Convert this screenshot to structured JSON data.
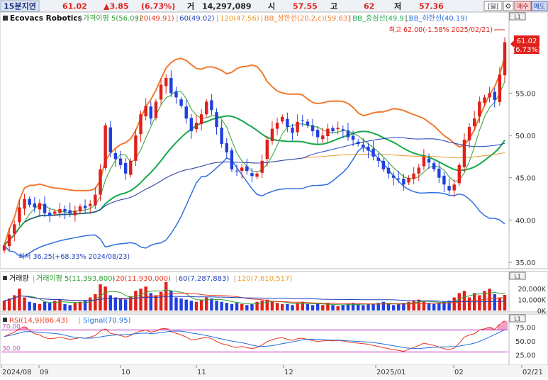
{
  "header": {
    "timeframe_label": "15분지연",
    "price": "61.02",
    "change": "▲3.85",
    "change_pct": "(6.73%)",
    "volume_label": "거",
    "volume_value": "14,297,089",
    "open_label": "시",
    "open_value": "57.55",
    "high_label": "고",
    "high_value": "62",
    "low_label": "저",
    "low_value": "57.36",
    "period_button": "[일]",
    "settings_icon": "gear-icon",
    "buy_button": "매수",
    "sell_button": "매도"
  },
  "legend": {
    "name": "Ecovacs Robotics",
    "items": [
      {
        "label": "가격이평 5(56.09)",
        "color": "#2e9e2e"
      },
      {
        "label": "20(49.91)",
        "color": "#e8381c"
      },
      {
        "label": "60(49.02)",
        "color": "#1f3fbf"
      },
      {
        "label": "120(47.56)",
        "color": "#e69a2e"
      },
      {
        "label": "BB_상한선(20,2,c)(59.63)",
        "color": "#f07a30"
      },
      {
        "label": "BB_중심선(49.91)",
        "color": "#17a84a"
      },
      {
        "label": "BB_하한선(40.19)",
        "color": "#2f6fe0"
      }
    ]
  },
  "annotations": {
    "high": "최고 62.00(-1.58% 2025/02/21)",
    "low": "최저 36.25(+68.33% 2024/08/23)",
    "last_price": "61.02",
    "last_pct": "(6.73%)"
  },
  "price_axis": {
    "min": 34.5,
    "max": 63.5,
    "ticks": [
      "55.00",
      "50.00",
      "45.00",
      "40.00",
      "35.00"
    ]
  },
  "volume_legend": {
    "title": "거래량",
    "items": [
      {
        "label": "거래이평 5(11,393,800)",
        "color": "#2e9e2e"
      },
      {
        "label": "20(11,930,000)",
        "color": "#e8381c"
      },
      {
        "label": "60(7,287,883)",
        "color": "#1f3fbf"
      },
      {
        "label": "120(7,610,517)",
        "color": "#e69a2e"
      }
    ]
  },
  "volume_axis": {
    "max": 26000000,
    "ticks": [
      "20,000K",
      "10,000K",
      "0K"
    ]
  },
  "rsi_legend": {
    "items": [
      {
        "label": "RSI(14,9)(86.43)",
        "color": "#e8381c"
      },
      {
        "label": "Signal(70.95)",
        "color": "#1f6fe0"
      }
    ]
  },
  "rsi_axis": {
    "ticks": [
      "75.00",
      "50.00",
      "25.00"
    ],
    "level_high": "70.00",
    "level_low": "30.00"
  },
  "x_axis": {
    "ticks": [
      "2024/08",
      "09",
      "10",
      "11",
      "12",
      "2025/01",
      "02",
      "02/21"
    ]
  },
  "panel_buttons": [
    "L1",
    "L1",
    "L1"
  ],
  "chart_data": {
    "type": "candlestick",
    "title": "Ecovacs Robotics",
    "start": "2024/08/14",
    "end": "2025/02/21",
    "ylim": [
      34.5,
      63.5
    ],
    "key_points": [
      {
        "date": "2024/08/23",
        "low": 36.25
      },
      {
        "date": "2024/10/08",
        "high": 56.5
      },
      {
        "date": "2024/11/07",
        "high": 57.5
      },
      {
        "date": "2025/01/27",
        "low": 41.5
      },
      {
        "date": "2025/02/21",
        "high": 62.0,
        "close": 61.02
      }
    ],
    "close_path": [
      37.0,
      38.3,
      39.5,
      41.5,
      42.5,
      41.8,
      41.5,
      42.0,
      40.8,
      40.5,
      41.0,
      41.3,
      41.0,
      40.8,
      41.1,
      41.6,
      41.4,
      41.9,
      43.0,
      46.0,
      51.2,
      48.0,
      47.2,
      46.5,
      45.5,
      47.0,
      50.0,
      52.5,
      53.5,
      52.0,
      54.0,
      56.0,
      56.8,
      55.0,
      54.5,
      53.5,
      52.0,
      50.5,
      51.5,
      52.5,
      54.0,
      53.0,
      51.0,
      49.0,
      48.0,
      46.0,
      45.8,
      46.2,
      45.8,
      45.2,
      45.5,
      47.0,
      49.5,
      50.8,
      51.5,
      52.2,
      51.0,
      50.3,
      51.6,
      51.8,
      51.2,
      50.5,
      49.8,
      50.0,
      50.8,
      50.5,
      50.9,
      50.6,
      49.8,
      49.5,
      49.0,
      48.6,
      48.2,
      47.5,
      47.0,
      46.0,
      45.5,
      45.0,
      44.8,
      44.2,
      45.0,
      45.5,
      46.2,
      47.5,
      46.8,
      46.0,
      45.0,
      44.2,
      43.5,
      44.2,
      46.5,
      49.5,
      51.0,
      52.0,
      54.0,
      54.5,
      55.0,
      54.2,
      57.2,
      61.02
    ],
    "volume_path": [
      9,
      11,
      14,
      20,
      12,
      8,
      7,
      6,
      8,
      7,
      9,
      10,
      6,
      5,
      7,
      8,
      9,
      12,
      15,
      24,
      22,
      14,
      12,
      11,
      10,
      13,
      18,
      20,
      22,
      16,
      14,
      17,
      26,
      18,
      12,
      11,
      10,
      9,
      8,
      10,
      12,
      11,
      9,
      8,
      7,
      6,
      7,
      6,
      5,
      6,
      8,
      9,
      10,
      8,
      7,
      6,
      6,
      5,
      7,
      8,
      6,
      5,
      6,
      5,
      7,
      5,
      4,
      5,
      6,
      7,
      6,
      5,
      6,
      6,
      7,
      8,
      6,
      5,
      6,
      7,
      8,
      9,
      10,
      8,
      7,
      6,
      7,
      8,
      9,
      12,
      16,
      18,
      12,
      16,
      14,
      18,
      20,
      15,
      12,
      14.3
    ],
    "rsi_path": [
      58,
      62,
      66,
      72,
      76,
      69,
      63,
      61,
      56,
      54,
      55,
      57,
      55,
      53,
      54,
      56,
      55,
      57,
      60,
      68,
      72,
      64,
      62,
      60,
      57,
      60,
      65,
      68,
      70,
      66,
      68,
      72,
      73,
      67,
      64,
      61,
      57,
      52,
      53,
      55,
      57,
      54,
      49,
      45,
      43,
      40,
      38,
      40,
      38,
      36,
      38,
      43,
      49,
      52,
      55,
      56,
      53,
      51,
      54,
      55,
      53,
      51,
      49,
      50,
      51,
      50,
      51,
      50,
      48,
      47,
      46,
      45,
      44,
      42,
      40,
      38,
      36,
      34,
      33,
      31,
      35,
      38,
      42,
      46,
      44,
      42,
      39,
      36,
      34,
      37,
      46,
      57,
      61,
      63,
      70,
      72,
      75,
      71,
      80,
      86.43
    ]
  }
}
